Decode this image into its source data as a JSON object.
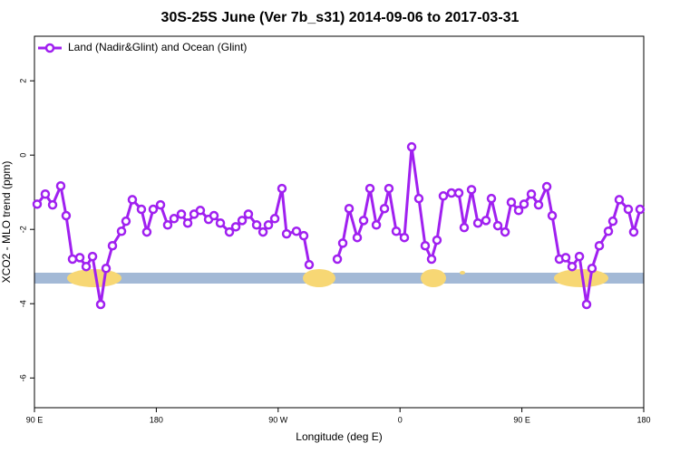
{
  "chart_data": {
    "type": "line",
    "title": "30S-25S June (Ver 7b_s31)   2014-09-06 to 2017-03-31",
    "x_label": "Longitude (deg E)",
    "y_label": "XCO2 - MLO trend (ppm)",
    "xlim": [
      90,
      540
    ],
    "xticks": [
      {
        "value": 90,
        "label": "90 E"
      },
      180,
      {
        "value": 270,
        "label": "90 W"
      },
      {
        "value": 360,
        "label": "0"
      },
      {
        "value": 450,
        "label": "90 E"
      },
      {
        "value": 540,
        "label": "180"
      }
    ],
    "ylim": [
      -6.8,
      3.2
    ],
    "yticks": [
      -6,
      -4,
      -2,
      0,
      2
    ],
    "legend_position": "top-left",
    "series": [
      {
        "name": "Land (Nadir&Glint) and Ocean (Glint)",
        "color": "#a020f0",
        "x": [
          92,
          98,
          103.4,
          109.4,
          113.4,
          118.1,
          123.5,
          128.2,
          132.9,
          138.9,
          142.9,
          147.6,
          154.3,
          157.6,
          162.3,
          169,
          173,
          177.7,
          183.1,
          188.4,
          193.1,
          198.5,
          203.2,
          207.9,
          212.5,
          218.6,
          222.6,
          227.3,
          234,
          238.7,
          243.4,
          248,
          254.1,
          258.8,
          262.8,
          267.5,
          272.8,
          276.2,
          283.5,
          288.9,
          292.9,
          300,
          313.7,
          317.7,
          322.4,
          328.4,
          333.1,
          337.8,
          342.5,
          348.5,
          351.8,
          357.2,
          363.2,
          368.6,
          373.9,
          378.6,
          383.3,
          387.3,
          392,
          398,
          403.4,
          407.4,
          412.8,
          417.5,
          423.5,
          427.5,
          432.2,
          437.6,
          442.2,
          447.6,
          451.6,
          457,
          462.3,
          468.4,
          472.4,
          477.7,
          482.4,
          487.1,
          492.5,
          497.8,
          501.8,
          507.2,
          513.9,
          517.2,
          521.9,
          528.6,
          532.6,
          537.3
        ],
        "values": [
          -1.32,
          -1.05,
          -1.34,
          -0.83,
          -1.63,
          -2.8,
          -2.76,
          -3.0,
          -2.73,
          -4.02,
          -3.05,
          -2.44,
          -2.05,
          -1.78,
          -1.2,
          -1.46,
          -2.07,
          -1.46,
          -1.34,
          -1.88,
          -1.71,
          -1.59,
          -1.83,
          -1.59,
          -1.49,
          -1.73,
          -1.63,
          -1.83,
          -2.07,
          -1.93,
          -1.76,
          -1.59,
          -1.88,
          -2.07,
          -1.88,
          -1.71,
          -0.9,
          -2.12,
          -2.05,
          -2.17,
          -2.95,
          null,
          -2.8,
          -2.37,
          -1.44,
          -2.22,
          -1.76,
          -0.9,
          -1.88,
          -1.44,
          -0.9,
          -2.05,
          -2.22,
          0.22,
          -1.17,
          -2.44,
          -2.8,
          -2.29,
          -1.1,
          -1.02,
          -1.02,
          -1.95,
          -0.93,
          -1.83,
          -1.76,
          -1.17,
          -1.9,
          -2.07,
          -1.27,
          -1.49,
          -1.32,
          -1.05,
          -1.34,
          -0.85,
          -1.63,
          -2.8,
          -2.76,
          -3.0,
          -2.73,
          -4.02,
          -3.05,
          -2.44,
          -2.05,
          -1.78,
          -1.2,
          -1.46,
          -2.07,
          -1.46
        ]
      }
    ]
  }
}
